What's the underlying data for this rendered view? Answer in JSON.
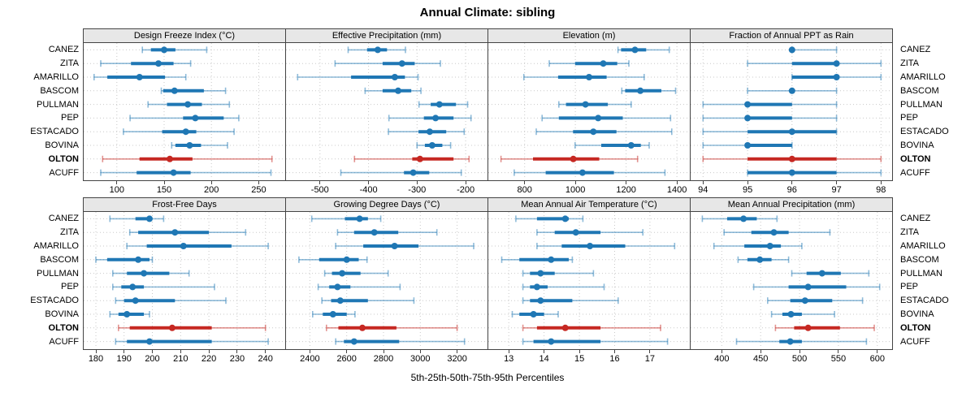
{
  "title": "Annual Climate: sibling",
  "caption": "5th-25th-50th-75th-95th Percentiles",
  "colors": {
    "series_blue": "#1f77b4",
    "highlight_red": "#c62822",
    "grid": "#c9c9c9",
    "strip_bg": "#e7e7e7",
    "border": "#444444"
  },
  "stations": [
    {
      "name": "CANEZ",
      "highlight": false
    },
    {
      "name": "ZITA",
      "highlight": false
    },
    {
      "name": "AMARILLO",
      "highlight": false
    },
    {
      "name": "BASCOM",
      "highlight": false
    },
    {
      "name": "PULLMAN",
      "highlight": false
    },
    {
      "name": "PEP",
      "highlight": false
    },
    {
      "name": "ESTACADO",
      "highlight": false
    },
    {
      "name": "BOVINA",
      "highlight": false
    },
    {
      "name": "OLTON",
      "highlight": true
    },
    {
      "name": "ACUFF",
      "highlight": false
    }
  ],
  "chart_data": {
    "type": "dotplot-intervals",
    "percentiles": [
      5,
      25,
      50,
      75,
      95
    ],
    "station_order": [
      "CANEZ",
      "ZITA",
      "AMARILLO",
      "BASCOM",
      "PULLMAN",
      "PEP",
      "ESTACADO",
      "BOVINA",
      "OLTON",
      "ACUFF"
    ],
    "legend_note": "values arrays are [5th,25th,50th,75th,95th] percentiles per station, in station_order",
    "panels": [
      {
        "title": "Design Freeze Index (°C)",
        "row": 0,
        "col": 0,
        "ticks": [
          100,
          150,
          200,
          250
        ],
        "xlim": [
          65,
          278
        ],
        "values": [
          [
            127,
            136,
            150,
            162,
            195
          ],
          [
            83,
            115,
            144,
            160,
            178
          ],
          [
            76,
            90,
            124,
            151,
            173
          ],
          [
            147,
            149,
            161,
            192,
            215
          ],
          [
            133,
            153,
            175,
            190,
            219
          ],
          [
            114,
            170,
            183,
            213,
            229
          ],
          [
            107,
            148,
            173,
            184,
            224
          ],
          [
            158,
            162,
            177,
            189,
            217
          ],
          [
            85,
            124,
            156,
            180,
            264
          ],
          [
            83,
            121,
            160,
            178,
            263
          ]
        ]
      },
      {
        "title": "Effective Precipitation (mm)",
        "row": 0,
        "col": 1,
        "ticks": [
          -500,
          -400,
          -300,
          -200
        ],
        "xlim": [
          -570,
          -155
        ],
        "values": [
          [
            -442,
            -403,
            -381,
            -362,
            -324
          ],
          [
            -469,
            -371,
            -331,
            -305,
            -252
          ],
          [
            -546,
            -436,
            -346,
            -325,
            -298
          ],
          [
            -407,
            -371,
            -339,
            -312,
            -292
          ],
          [
            -296,
            -272,
            -254,
            -220,
            -196
          ],
          [
            -358,
            -286,
            -262,
            -225,
            -189
          ],
          [
            -359,
            -297,
            -274,
            -240,
            -203
          ],
          [
            -300,
            -284,
            -269,
            -248,
            -231
          ],
          [
            -429,
            -310,
            -294,
            -225,
            -193
          ],
          [
            -457,
            -327,
            -308,
            -275,
            -209
          ]
        ]
      },
      {
        "title": "Elevation (m)",
        "row": 0,
        "col": 2,
        "ticks": [
          800,
          1000,
          1200,
          1400
        ],
        "xlim": [
          657,
          1451
        ],
        "values": [
          [
            1168,
            1180,
            1235,
            1279,
            1370
          ],
          [
            897,
            999,
            1110,
            1165,
            1211
          ],
          [
            797,
            932,
            1054,
            1123,
            1271
          ],
          [
            1183,
            1196,
            1256,
            1339,
            1395
          ],
          [
            935,
            963,
            1040,
            1128,
            1220
          ],
          [
            869,
            935,
            1090,
            1187,
            1375
          ],
          [
            846,
            991,
            1071,
            1162,
            1380
          ],
          [
            999,
            1102,
            1220,
            1258,
            1291
          ],
          [
            707,
            833,
            992,
            1094,
            1245
          ],
          [
            759,
            883,
            1028,
            1152,
            1353
          ]
        ]
      },
      {
        "title": "Fraction of Annual PPT as Rain",
        "row": 0,
        "col": 3,
        "ticks": [
          94,
          95,
          96,
          97,
          98
        ],
        "xlim": [
          93.72,
          98.25
        ],
        "values": [
          [
            96,
            96,
            96,
            96,
            97
          ],
          [
            95,
            96,
            97,
            97,
            98
          ],
          [
            96,
            96,
            97,
            97,
            98
          ],
          [
            95,
            96,
            96,
            96,
            97
          ],
          [
            94,
            95,
            95,
            96,
            97
          ],
          [
            94,
            95,
            95,
            96,
            97
          ],
          [
            94,
            95,
            96,
            97,
            97
          ],
          [
            94,
            95,
            95,
            96,
            96
          ],
          [
            94,
            95,
            96,
            97,
            98
          ],
          [
            95,
            95,
            96,
            97,
            98
          ]
        ]
      },
      {
        "title": "Frost-Free Days",
        "row": 1,
        "col": 0,
        "ticks": [
          180,
          190,
          200,
          210,
          220,
          230,
          240
        ],
        "xlim": [
          175.7,
          247
        ],
        "values": [
          [
            185,
            194,
            199,
            200,
            204
          ],
          [
            192,
            195,
            208,
            220,
            233
          ],
          [
            191,
            198,
            211,
            228,
            241
          ],
          [
            180,
            184,
            195,
            199,
            200
          ],
          [
            186,
            191,
            197,
            206,
            213
          ],
          [
            186,
            189,
            193,
            197,
            222
          ],
          [
            187,
            190,
            194,
            208,
            226
          ],
          [
            185,
            188,
            191,
            197,
            199
          ],
          [
            188,
            192,
            207,
            221,
            240
          ],
          [
            187,
            191,
            199,
            221,
            241
          ]
        ]
      },
      {
        "title": "Growing Degree Days (°C)",
        "row": 1,
        "col": 1,
        "ticks": [
          2400,
          2600,
          2800,
          3000,
          3200
        ],
        "xlim": [
          2270,
          3365
        ],
        "values": [
          [
            2410,
            2590,
            2670,
            2715,
            2785
          ],
          [
            2550,
            2640,
            2750,
            2880,
            3090
          ],
          [
            2540,
            2690,
            2860,
            2990,
            3290
          ],
          [
            2340,
            2450,
            2600,
            2665,
            2710
          ],
          [
            2480,
            2520,
            2575,
            2675,
            2825
          ],
          [
            2445,
            2505,
            2550,
            2620,
            2890
          ],
          [
            2465,
            2515,
            2565,
            2715,
            2965
          ],
          [
            2415,
            2470,
            2525,
            2600,
            2645
          ],
          [
            2490,
            2555,
            2685,
            2870,
            3200
          ],
          [
            2540,
            2585,
            2640,
            2885,
            3240
          ]
        ]
      },
      {
        "title": "Mean Annual Air Temperature (°C)",
        "row": 1,
        "col": 2,
        "ticks": [
          13,
          14,
          15,
          16,
          17
        ],
        "xlim": [
          12.42,
          18.13
        ],
        "values": [
          [
            13.2,
            13.8,
            14.6,
            14.7,
            15.1
          ],
          [
            13.8,
            14.3,
            14.9,
            15.6,
            16.8
          ],
          [
            13.8,
            14.5,
            15.3,
            16.3,
            17.7
          ],
          [
            12.8,
            13.3,
            14.2,
            14.7,
            14.8
          ],
          [
            13.4,
            13.6,
            13.9,
            14.3,
            15.4
          ],
          [
            13.4,
            13.6,
            13.8,
            14.1,
            15.7
          ],
          [
            13.4,
            13.6,
            13.9,
            14.8,
            16.1
          ],
          [
            13.1,
            13.3,
            13.7,
            14.0,
            14.4
          ],
          [
            13.4,
            13.8,
            14.6,
            15.6,
            17.3
          ],
          [
            13.4,
            13.7,
            14.2,
            15.6,
            17.5
          ]
        ]
      },
      {
        "title": "Mean Annual Precipitation (mm)",
        "row": 1,
        "col": 3,
        "ticks": [
          400,
          450,
          500,
          550,
          600
        ],
        "xlim": [
          360,
          619
        ],
        "values": [
          [
            375,
            407,
            428,
            445,
            471
          ],
          [
            403,
            438,
            467,
            486,
            539
          ],
          [
            390,
            429,
            462,
            476,
            503
          ],
          [
            421,
            433,
            449,
            464,
            486
          ],
          [
            490,
            509,
            529,
            553,
            589
          ],
          [
            441,
            486,
            511,
            560,
            603
          ],
          [
            459,
            488,
            507,
            542,
            581
          ],
          [
            464,
            478,
            489,
            503,
            545
          ],
          [
            469,
            493,
            511,
            552,
            596
          ],
          [
            419,
            474,
            488,
            503,
            586
          ]
        ]
      }
    ]
  }
}
